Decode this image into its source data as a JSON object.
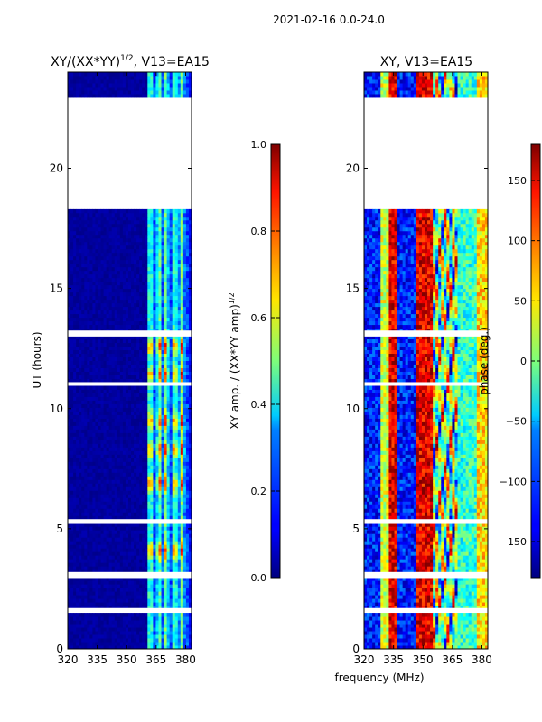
{
  "header": {
    "date_range": "2021-02-16 0.0-24.0"
  },
  "chart_data": [
    {
      "type": "heatmap",
      "title": "XY/(XX*YY)",
      "title_exponent": "1/2",
      "title_suffix": ", V13=EA15",
      "xlabel": "",
      "ylabel": "UT (hours)",
      "xlim": [
        320,
        383
      ],
      "ylim": [
        0,
        24
      ],
      "xticks": [
        320,
        335,
        350,
        365,
        380
      ],
      "yticks": [
        0,
        5,
        10,
        15,
        20
      ],
      "signal_band_mhz": [
        360,
        382
      ],
      "bright_channels_mhz": [
        362,
        366.5,
        370,
        374.5,
        378
      ],
      "peak_ut_hours": [
        12.6,
        11.4,
        9.5,
        8.3,
        6.9,
        4.1
      ],
      "flagged_ut_intervals": [
        [
          18.3,
          22.9
        ],
        [
          13.0,
          13.25
        ],
        [
          10.95,
          11.1
        ],
        [
          5.2,
          5.4
        ],
        [
          2.95,
          3.2
        ],
        [
          1.55,
          1.7
        ]
      ],
      "colorbar": {
        "label_text": "XY amp. / (XX*YY amp)",
        "label_exponent": "1/2",
        "range": [
          0.0,
          1.0
        ],
        "ticks": [
          "0.0",
          "0.2",
          "0.4",
          "0.6",
          "0.8",
          "1.0"
        ],
        "colormap": "jet"
      }
    },
    {
      "type": "heatmap",
      "title": "XY, V13=EA15",
      "xlabel": "frequency (MHz)",
      "ylabel": "",
      "xlim": [
        320,
        383
      ],
      "ylim": [
        0,
        24
      ],
      "xticks": [
        320,
        335,
        350,
        365,
        380
      ],
      "yticks": [
        0,
        5,
        10,
        15,
        20
      ],
      "phase_bands_mhz": [
        [
          320,
          329,
          "blue"
        ],
        [
          329,
          333,
          "yellow-green"
        ],
        [
          333,
          337,
          "red"
        ],
        [
          337,
          347,
          "blue"
        ],
        [
          347,
          355,
          "red"
        ],
        [
          355,
          368,
          "mixed"
        ],
        [
          368,
          377,
          "light-blue"
        ],
        [
          377,
          383,
          "yellow"
        ]
      ],
      "flagged_ut_intervals": [
        [
          18.3,
          22.9
        ],
        [
          13.0,
          13.25
        ],
        [
          10.95,
          11.1
        ],
        [
          5.2,
          5.4
        ],
        [
          2.95,
          3.2
        ],
        [
          1.55,
          1.7
        ]
      ],
      "colorbar": {
        "label_text": "phase (deg.)",
        "range": [
          -180,
          180
        ],
        "ticks": [
          "−150",
          "−100",
          "−50",
          "0",
          "50",
          "100",
          "150"
        ],
        "colormap": "jet"
      }
    }
  ]
}
